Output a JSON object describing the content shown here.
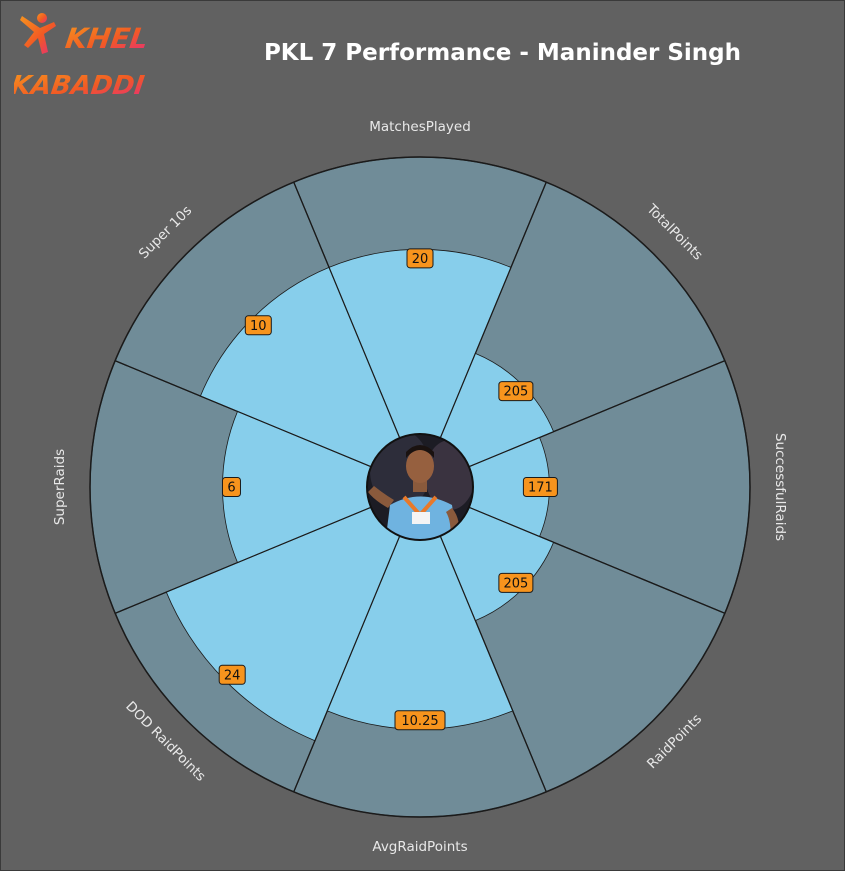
{
  "brand": {
    "line1": "KHEL",
    "line2": "KABADDI"
  },
  "chart_data": {
    "type": "radial-bar",
    "title": "PKL 7 Performance - Maninder Singh",
    "categories": [
      "MatchesPlayed",
      "TotalPoints",
      "SuccessfulRaids",
      "RaidPoints",
      "AvgRaidPoints",
      "DOD RaidPoints",
      "SuperRaids",
      "Super 10s"
    ],
    "values": [
      20,
      205,
      171,
      205,
      10.25,
      24,
      6,
      10
    ],
    "value_labels": [
      "20",
      "205",
      "171",
      "205",
      "10.25",
      "24",
      "6",
      "10"
    ],
    "center_image": "player-portrait"
  },
  "colors": {
    "background": "#616161",
    "sector": "#708c98",
    "fill": "#87ceeb",
    "label_box": "#f7941d",
    "logo_gradient_start": "#f15a24",
    "logo_gradient_end": "#e62d7a"
  }
}
